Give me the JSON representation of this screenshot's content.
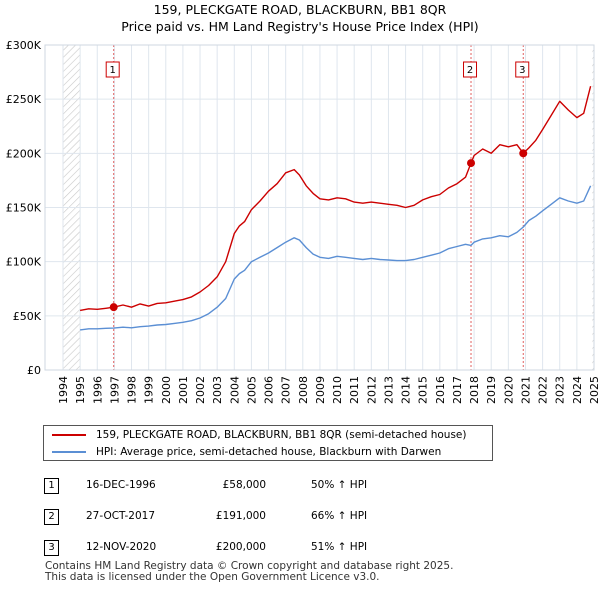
{
  "title_line1": "159, PLECKGATE ROAD, BLACKBURN, BB1 8QR",
  "title_line2": "Price paid vs. HM Land Registry's House Price Index (HPI)",
  "legend": {
    "property_label": "159, PLECKGATE ROAD, BLACKBURN, BB1 8QR (semi-detached house)",
    "hpi_label": "HPI: Average price, semi-detached house, Blackburn with Darwen"
  },
  "sales": [
    {
      "marker": "1",
      "date": "16-DEC-1996",
      "price": "£58,000",
      "hpi_change": "50% ↑ HPI"
    },
    {
      "marker": "2",
      "date": "27-OCT-2017",
      "price": "£191,000",
      "hpi_change": "66% ↑ HPI"
    },
    {
      "marker": "3",
      "date": "12-NOV-2020",
      "price": "£200,000",
      "hpi_change": "51% ↑ HPI"
    }
  ],
  "footer_line1": "Contains HM Land Registry data © Crown copyright and database right 2025.",
  "footer_line2": "This data is licensed under the Open Government Licence v3.0.",
  "colors": {
    "property": "#cc0000",
    "hpi": "#5b8fd4",
    "grid": "#dfe6ee",
    "hatch": "#c8c8c8",
    "vline": "#e06060"
  },
  "chart_data": {
    "type": "line",
    "xlim": [
      1994,
      2025
    ],
    "ylim": [
      0,
      300000
    ],
    "x_ticks": [
      "1994",
      "1995",
      "1996",
      "1997",
      "1998",
      "1999",
      "2000",
      "2001",
      "2002",
      "2003",
      "2004",
      "2005",
      "2006",
      "2007",
      "2008",
      "2009",
      "2010",
      "2011",
      "2012",
      "2013",
      "2014",
      "2015",
      "2016",
      "2017",
      "2018",
      "2019",
      "2020",
      "2021",
      "2022",
      "2023",
      "2024",
      "2025"
    ],
    "y_ticks": [
      {
        "value": 0,
        "label": "£0"
      },
      {
        "value": 50000,
        "label": "£50K"
      },
      {
        "value": 100000,
        "label": "£100K"
      },
      {
        "value": 150000,
        "label": "£150K"
      },
      {
        "value": 200000,
        "label": "£200K"
      },
      {
        "value": 250000,
        "label": "£250K"
      },
      {
        "value": 300000,
        "label": "£300K"
      }
    ],
    "grid": true,
    "data_start": 1995.0,
    "data_end": 2024.9,
    "series": [
      {
        "name": "159, PLECKGATE ROAD, BLACKBURN, BB1 8QR (semi-detached house)",
        "x": [
          1995.0,
          1995.5,
          1996.0,
          1996.5,
          1996.96,
          1997.5,
          1998.0,
          1998.5,
          1999.0,
          1999.5,
          2000.0,
          2000.5,
          2001.0,
          2001.5,
          2002.0,
          2002.5,
          2003.0,
          2003.5,
          2004.0,
          2004.3,
          2004.6,
          2005.0,
          2005.5,
          2006.0,
          2006.5,
          2007.0,
          2007.5,
          2007.8,
          2008.2,
          2008.6,
          2009.0,
          2009.5,
          2010.0,
          2010.5,
          2011.0,
          2011.5,
          2012.0,
          2012.5,
          2013.0,
          2013.5,
          2014.0,
          2014.5,
          2015.0,
          2015.5,
          2016.0,
          2016.5,
          2017.0,
          2017.5,
          2017.82,
          2018.0,
          2018.5,
          2019.0,
          2019.5,
          2020.0,
          2020.5,
          2020.87,
          2021.2,
          2021.6,
          2022.0,
          2022.5,
          2023.0,
          2023.5,
          2024.0,
          2024.4,
          2024.8
        ],
        "y": [
          55000,
          56500,
          56000,
          57000,
          58000,
          60000,
          58000,
          61000,
          59000,
          61500,
          62000,
          63500,
          65000,
          67500,
          72000,
          78000,
          86000,
          100000,
          126000,
          133000,
          137000,
          148000,
          156000,
          165000,
          172000,
          182000,
          185000,
          180000,
          170000,
          163000,
          158000,
          157000,
          159000,
          158000,
          155000,
          154000,
          155000,
          154000,
          153000,
          152000,
          150000,
          152000,
          157000,
          160000,
          162000,
          168000,
          172000,
          178000,
          191000,
          198000,
          204000,
          200000,
          208000,
          206000,
          208000,
          200000,
          205000,
          212000,
          222000,
          235000,
          248000,
          240000,
          233000,
          237000,
          262000
        ]
      },
      {
        "name": "HPI: Average price, semi-detached house, Blackburn with Darwen",
        "x": [
          1995.0,
          1995.5,
          1996.0,
          1996.5,
          1996.96,
          1997.5,
          1998.0,
          1998.5,
          1999.0,
          1999.5,
          2000.0,
          2000.5,
          2001.0,
          2001.5,
          2002.0,
          2002.5,
          2003.0,
          2003.5,
          2004.0,
          2004.3,
          2004.6,
          2005.0,
          2005.5,
          2006.0,
          2006.5,
          2007.0,
          2007.5,
          2007.8,
          2008.2,
          2008.6,
          2009.0,
          2009.5,
          2010.0,
          2010.5,
          2011.0,
          2011.5,
          2012.0,
          2012.5,
          2013.0,
          2013.5,
          2014.0,
          2014.5,
          2015.0,
          2015.5,
          2016.0,
          2016.5,
          2017.0,
          2017.5,
          2017.82,
          2018.0,
          2018.5,
          2019.0,
          2019.5,
          2020.0,
          2020.5,
          2020.87,
          2021.2,
          2021.6,
          2022.0,
          2022.5,
          2023.0,
          2023.5,
          2024.0,
          2024.4,
          2024.8
        ],
        "y": [
          37000,
          38000,
          38000,
          38500,
          38700,
          39500,
          39000,
          40000,
          40500,
          41500,
          42000,
          43000,
          44000,
          45500,
          48000,
          52000,
          58000,
          66000,
          84000,
          89000,
          92000,
          100000,
          104000,
          108000,
          113000,
          118000,
          122000,
          120000,
          113000,
          107000,
          104000,
          103000,
          105000,
          104000,
          103000,
          102000,
          103000,
          102000,
          101500,
          101000,
          101000,
          102000,
          104000,
          106000,
          108000,
          112000,
          114000,
          116000,
          115000,
          118000,
          121000,
          122000,
          124000,
          123000,
          127000,
          132000,
          138000,
          142000,
          147000,
          153000,
          159000,
          156000,
          154000,
          156000,
          170000
        ]
      }
    ],
    "sale_points": [
      {
        "marker": "1",
        "x": 1996.96,
        "y": 58000
      },
      {
        "marker": "2",
        "x": 2017.82,
        "y": 191000
      },
      {
        "marker": "3",
        "x": 2020.87,
        "y": 200000
      }
    ]
  }
}
